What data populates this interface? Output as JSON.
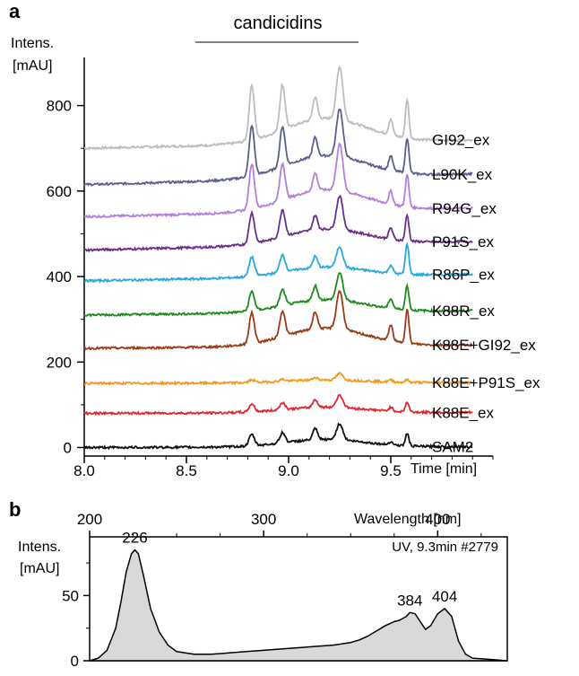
{
  "panels": {
    "a": {
      "letter": "a",
      "bracket_label": "candicidins",
      "ylabel_line1": "Intens.",
      "ylabel_line2": "[mAU]",
      "xlabel": "Time [min]"
    },
    "b": {
      "letter": "b",
      "ylabel_line1": "Intens.",
      "ylabel_line2": "[mAU]",
      "xlabel": "Wavelength [nm]",
      "info": "UV, 9.3min #2779"
    }
  },
  "chart_data": [
    {
      "type": "line",
      "panel": "a",
      "xlabel": "Time [min]",
      "ylabel": "Intens. [mAU]",
      "xlim": [
        8.0,
        10.0
      ],
      "ylim": [
        -20,
        900
      ],
      "xticks": [
        "8.0",
        "8.5",
        "9.0",
        "9.5"
      ],
      "yticks": [
        "0",
        "200",
        "400",
        "600",
        "800"
      ],
      "bracket": {
        "label": "candicidins",
        "x_range": [
          8.65,
          9.65
        ]
      },
      "peak_times": [
        8.82,
        8.97,
        9.13,
        9.25,
        9.5,
        9.58
      ],
      "series": [
        {
          "name": "GI92_ex",
          "color": "#bdbdbd",
          "baseline": 700,
          "end": 720,
          "peaks": [
            170,
            140,
            70,
            165,
            50,
            120
          ]
        },
        {
          "name": "L90K_ex",
          "color": "#5a5f8c",
          "baseline": 615,
          "end": 640,
          "peaks": [
            155,
            125,
            60,
            150,
            45,
            110
          ]
        },
        {
          "name": "R94G_ex",
          "color": "#b57edc",
          "baseline": 540,
          "end": 560,
          "peaks": [
            140,
            115,
            55,
            145,
            40,
            100
          ]
        },
        {
          "name": "P91S_ex",
          "color": "#6b2e8e",
          "baseline": 462,
          "end": 482,
          "peaks": [
            95,
            85,
            45,
            105,
            35,
            80
          ]
        },
        {
          "name": "R86P_ex",
          "color": "#29a8de",
          "baseline": 390,
          "end": 405,
          "peaks": [
            60,
            55,
            35,
            65,
            25,
            95
          ]
        },
        {
          "name": "K88R_ex",
          "color": "#1e8a1e",
          "baseline": 310,
          "end": 320,
          "peaks": [
            60,
            50,
            45,
            85,
            30,
            75
          ]
        },
        {
          "name": "K88E+GI92_ex",
          "color": "#9b3a14",
          "baseline": 232,
          "end": 240,
          "peaks": [
            95,
            80,
            55,
            120,
            50,
            105
          ]
        },
        {
          "name": "K88E+P91S_ex",
          "color": "#f29a1d",
          "baseline": 150,
          "end": 152,
          "peaks": [
            8,
            6,
            8,
            20,
            6,
            8
          ]
        },
        {
          "name": "K88E_ex",
          "color": "#e0282e",
          "baseline": 80,
          "end": 82,
          "peaks": [
            25,
            22,
            25,
            38,
            12,
            30
          ]
        },
        {
          "name": "SAM2",
          "color": "#111111",
          "baseline": 0,
          "end": 2,
          "peaks": [
            35,
            32,
            35,
            50,
            10,
            38
          ]
        }
      ]
    },
    {
      "type": "area",
      "panel": "b",
      "xlabel": "Wavelength [nm]",
      "ylabel": "Intens. [mAU]",
      "xlim": [
        200,
        440
      ],
      "ylim": [
        0,
        95
      ],
      "xticks": [
        "200",
        "300",
        "400"
      ],
      "yticks": [
        "0",
        "50"
      ],
      "annotation": "UV, 9.3min #2779",
      "x": [
        200,
        205,
        210,
        215,
        218,
        221,
        224,
        226,
        228,
        231,
        235,
        240,
        245,
        250,
        260,
        270,
        280,
        290,
        300,
        310,
        320,
        330,
        340,
        350,
        355,
        360,
        365,
        370,
        375,
        378,
        382,
        384,
        387,
        390,
        393,
        396,
        400,
        404,
        408,
        412,
        416,
        420,
        430,
        440
      ],
      "values": [
        0,
        2,
        8,
        25,
        45,
        68,
        82,
        85,
        82,
        65,
        40,
        22,
        12,
        7,
        5,
        5,
        6,
        7,
        8,
        9,
        10,
        11,
        12,
        14,
        16,
        19,
        23,
        27,
        30,
        31,
        34,
        37,
        36,
        30,
        24,
        27,
        36,
        40,
        34,
        15,
        5,
        2,
        1,
        0
      ],
      "peak_labels": [
        {
          "x": 226,
          "y": 85,
          "text": "226"
        },
        {
          "x": 384,
          "y": 37,
          "text": "384"
        },
        {
          "x": 404,
          "y": 40,
          "text": "404"
        }
      ]
    }
  ]
}
